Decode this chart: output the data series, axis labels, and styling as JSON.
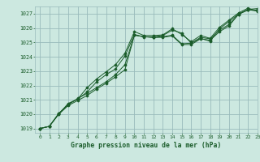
{
  "bg_color": "#cce8e0",
  "plot_bg_color": "#cce8e0",
  "grid_color": "#99bbbb",
  "line_color": "#1a5c2a",
  "title": "Graphe pression niveau de la mer (hPa)",
  "xlim": [
    -0.5,
    23
  ],
  "ylim": [
    1018.7,
    1027.5
  ],
  "yticks": [
    1019,
    1020,
    1021,
    1022,
    1023,
    1024,
    1025,
    1026,
    1027
  ],
  "xticks": [
    0,
    1,
    2,
    3,
    4,
    5,
    6,
    7,
    8,
    9,
    10,
    11,
    12,
    13,
    14,
    15,
    16,
    17,
    18,
    19,
    20,
    21,
    22,
    23
  ],
  "series": [
    [
      1019.0,
      1019.15,
      1020.0,
      1020.6,
      1020.95,
      1021.3,
      1021.75,
      1022.15,
      1022.6,
      1023.1,
      1025.5,
      1025.4,
      1025.35,
      1025.35,
      1025.45,
      1024.85,
      1024.85,
      1025.25,
      1025.15,
      1025.75,
      1026.15,
      1026.95,
      1027.25,
      1027.25
    ],
    [
      1019.0,
      1019.15,
      1020.05,
      1020.65,
      1021.1,
      1021.45,
      1021.85,
      1022.25,
      1022.75,
      1023.45,
      1025.5,
      1025.4,
      1025.35,
      1025.4,
      1025.5,
      1024.9,
      1024.95,
      1025.35,
      1025.25,
      1025.85,
      1026.25,
      1026.95,
      1027.3,
      1027.35
    ],
    [
      1019.0,
      1019.15,
      1020.0,
      1020.75,
      1021.05,
      1021.55,
      1022.25,
      1022.75,
      1023.15,
      1024.05,
      1025.55,
      1025.38,
      1025.38,
      1025.48,
      1025.85,
      1025.65,
      1024.95,
      1025.28,
      1025.08,
      1025.95,
      1026.45,
      1026.98,
      1027.28,
      1027.18
    ],
    [
      1019.0,
      1019.15,
      1020.05,
      1020.7,
      1021.05,
      1021.85,
      1022.45,
      1022.95,
      1023.45,
      1024.25,
      1025.75,
      1025.48,
      1025.48,
      1025.52,
      1025.95,
      1025.55,
      1025.05,
      1025.48,
      1025.28,
      1026.05,
      1026.55,
      1027.05,
      1027.38,
      1027.18
    ]
  ]
}
